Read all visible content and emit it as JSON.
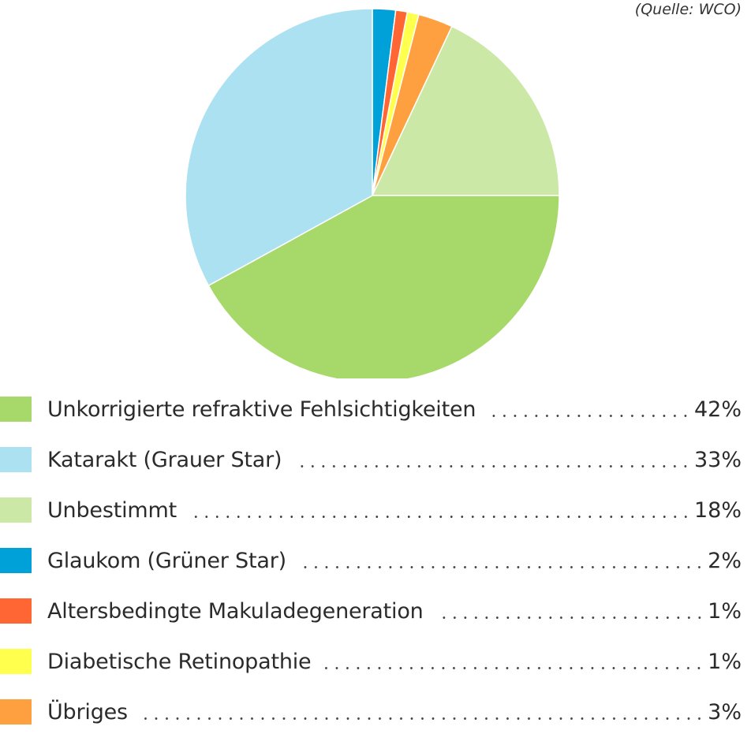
{
  "source_note": "(Quelle: WCO)",
  "chart_data": {
    "type": "pie",
    "start_angle_deg": 0,
    "direction": "clockwise",
    "slices": [
      {
        "label": "Glaukom (Grüner Star)",
        "value": 2,
        "display": "2%",
        "color": "#00A1D8"
      },
      {
        "label": "Altersbedingte Makuladegeneration",
        "value": 1,
        "display": "1%",
        "color": "#FF6633"
      },
      {
        "label": "Diabetische Retinopathie",
        "value": 1,
        "display": "1%",
        "color": "#FFFF4D"
      },
      {
        "label": "Übriges",
        "value": 3,
        "display": "3%",
        "color": "#FFA040"
      },
      {
        "label": "Unbestimmt",
        "value": 18,
        "display": "18%",
        "color": "#CBE8A6"
      },
      {
        "label": "Unkorrigierte refraktive Fehlsichtigkeiten",
        "value": 42,
        "display": "42%",
        "color": "#A6D96A"
      },
      {
        "label": "Katarakt (Grauer Star)",
        "value": 33,
        "display": "33%",
        "color": "#ABE1F0"
      }
    ],
    "legend": {
      "placement": "bottom",
      "items": [
        {
          "label": "Unkorrigierte refraktive Fehlsichtigkeiten",
          "value": "42%",
          "color": "#A6D96A"
        },
        {
          "label": "Katarakt (Grauer Star)",
          "value": "33%",
          "color": "#ABE1F0"
        },
        {
          "label": "Unbestimmt",
          "value": "18%",
          "color": "#CBE8A6"
        },
        {
          "label": "Glaukom (Grüner Star)",
          "value": "2%",
          "color": "#00A1D8"
        },
        {
          "label": "Altersbedingte Makuladegeneration",
          "value": "1%",
          "color": "#FF6633"
        },
        {
          "label": "Diabetische Retinopathie",
          "value": "1%",
          "color": "#FFFF4D"
        },
        {
          "label": "Übriges",
          "value": "3%",
          "color": "#FFA040"
        }
      ]
    }
  }
}
